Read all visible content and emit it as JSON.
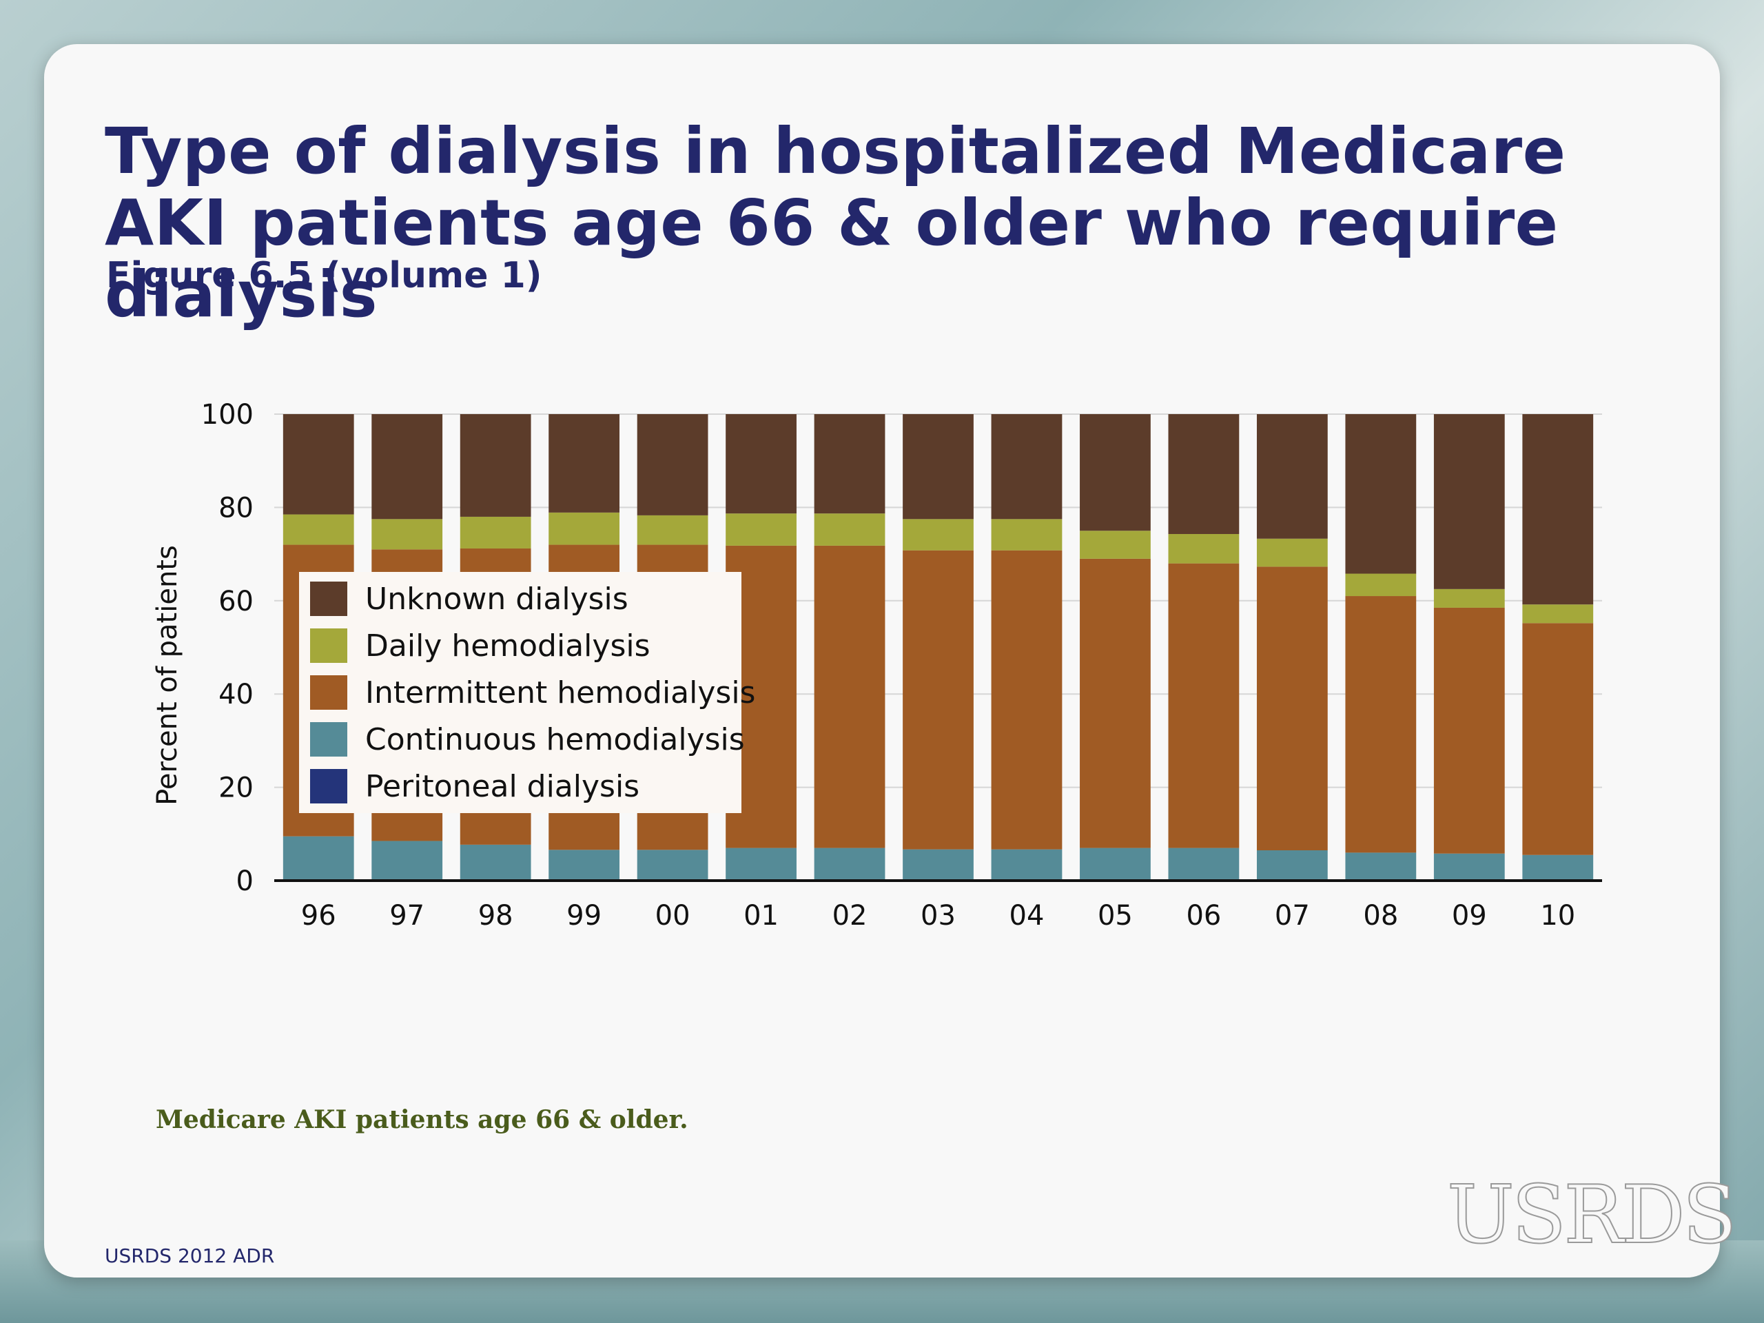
{
  "title": "Type of dialysis in hospitalized  Medicare AKI patients age 66 & older who require dialysis",
  "subtitle": "Figure 6.5 (volume 1)",
  "footnote": "Medicare AKI patients age 66 & older.",
  "source": "USRDS 2012 ADR",
  "logo_text": "USRDS",
  "chart_data": {
    "type": "bar",
    "stacked": true,
    "title": "",
    "xlabel": "",
    "ylabel": "Percent of patients",
    "ylim": [
      0,
      100
    ],
    "yticks": [
      0,
      20,
      40,
      60,
      80,
      100
    ],
    "grid": true,
    "legend_position": "left-middle",
    "categories": [
      "96",
      "97",
      "98",
      "99",
      "00",
      "01",
      "02",
      "03",
      "04",
      "05",
      "06",
      "07",
      "08",
      "09",
      "10"
    ],
    "series": [
      {
        "name": "Peritoneal dialysis",
        "color": "#24347a",
        "values": [
          0.3,
          0.3,
          0.3,
          0.3,
          0.3,
          0.3,
          0.3,
          0.3,
          0.3,
          0.3,
          0.3,
          0.3,
          0.3,
          0.3,
          0.3
        ]
      },
      {
        "name": "Continuous hemodialysis",
        "color": "#558b97",
        "values": [
          9.2,
          8.2,
          7.4,
          6.3,
          6.3,
          6.7,
          6.7,
          6.4,
          6.4,
          6.7,
          6.7,
          6.2,
          5.7,
          5.5,
          5.2
        ]
      },
      {
        "name": "Intermittent hemodialysis",
        "color": "#a05b24",
        "values": [
          62.5,
          62.5,
          63.5,
          65.4,
          65.4,
          64.8,
          64.8,
          64.1,
          64.1,
          62.0,
          61.0,
          60.8,
          55.0,
          52.7,
          49.7
        ]
      },
      {
        "name": "Daily hemodialysis",
        "color": "#a4a83a",
        "values": [
          6.5,
          6.5,
          6.8,
          6.9,
          6.3,
          6.9,
          6.9,
          6.7,
          6.7,
          6.0,
          6.3,
          6.0,
          4.8,
          4.0,
          4.0
        ]
      },
      {
        "name": "Unknown dialysis",
        "color": "#5c3c2a",
        "values": [
          21.5,
          22.5,
          22.0,
          21.1,
          21.7,
          21.3,
          21.3,
          22.5,
          22.5,
          25.0,
          25.7,
          26.7,
          34.2,
          37.5,
          40.8
        ]
      }
    ],
    "legend_order": [
      "Unknown dialysis",
      "Daily hemodialysis",
      "Intermittent hemodialysis",
      "Continuous hemodialysis",
      "Peritoneal dialysis"
    ]
  }
}
